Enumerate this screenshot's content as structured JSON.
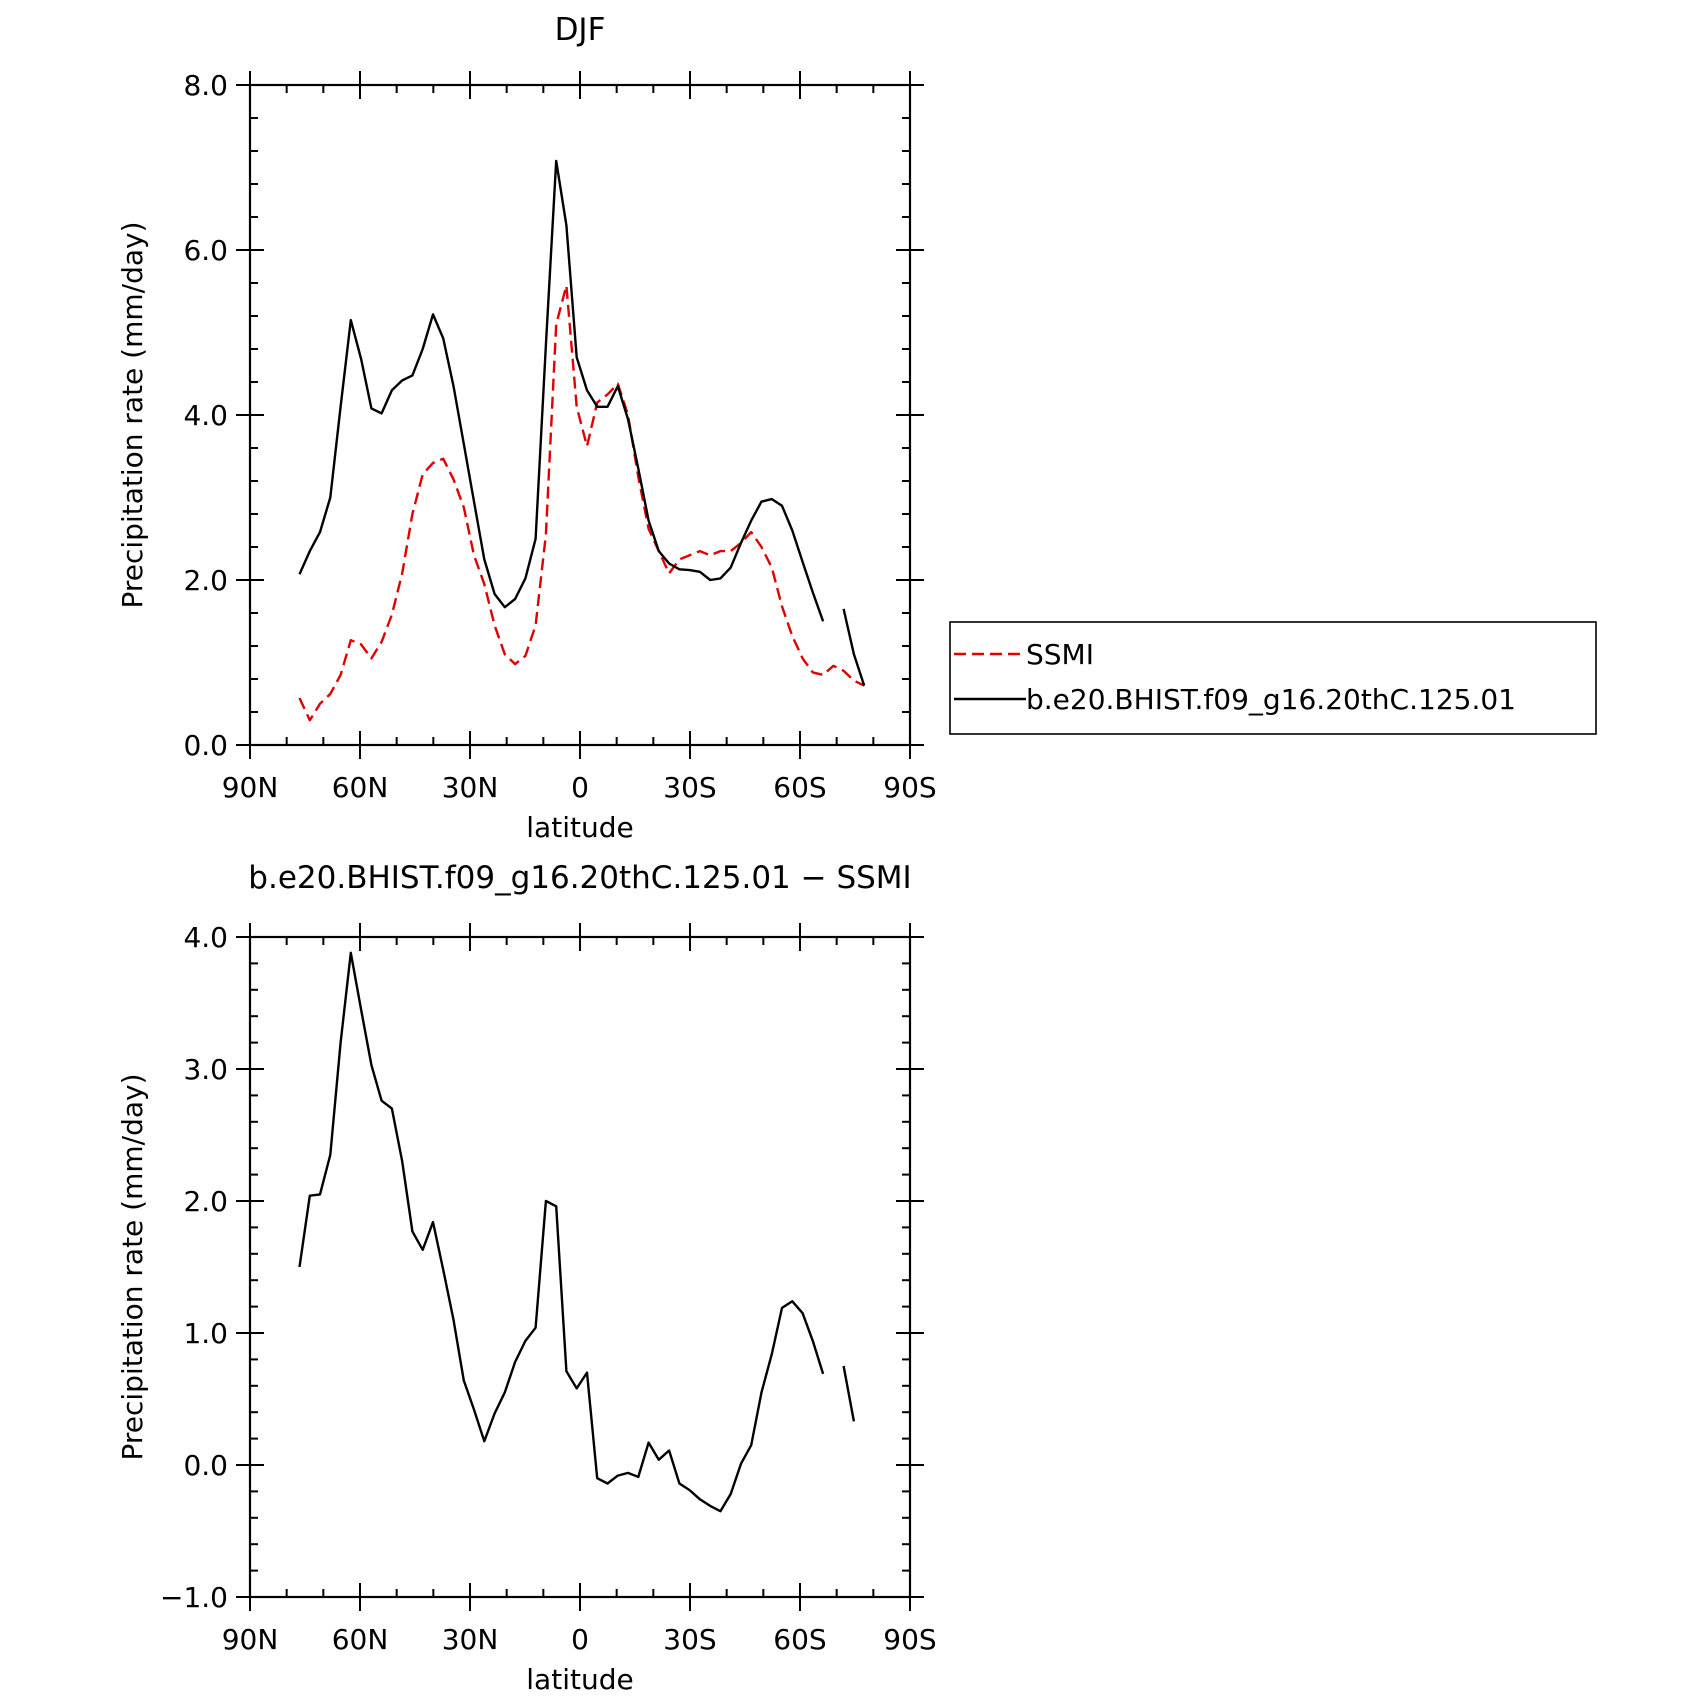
{
  "chart_data": [
    {
      "type": "line",
      "title": "DJF",
      "xlabel": "latitude",
      "ylabel": "Precipitation rate (mm/day)",
      "xlim": [
        90,
        -90
      ],
      "ylim": [
        0,
        8
      ],
      "x_ticks": [
        {
          "value": 90,
          "label": "90N"
        },
        {
          "value": 60,
          "label": "60N"
        },
        {
          "value": 30,
          "label": "30N"
        },
        {
          "value": 0,
          "label": "0"
        },
        {
          "value": -30,
          "label": "30S"
        },
        {
          "value": -60,
          "label": "60S"
        },
        {
          "value": -90,
          "label": "90S"
        }
      ],
      "y_ticks": [
        {
          "value": 0,
          "label": "0.0"
        },
        {
          "value": 2,
          "label": "2.0"
        },
        {
          "value": 4,
          "label": "4.0"
        },
        {
          "value": 6,
          "label": "6.0"
        },
        {
          "value": 8,
          "label": "8.0"
        }
      ],
      "legend": {
        "placement": "right"
      },
      "series": [
        {
          "name": "SSMI",
          "color": "#e00000",
          "dash": true,
          "points": [
            [
              76.5,
              0.57
            ],
            [
              73.7,
              0.3
            ],
            [
              70.9,
              0.5
            ],
            [
              68.1,
              0.62
            ],
            [
              65.3,
              0.85
            ],
            [
              62.5,
              1.27
            ],
            [
              59.7,
              1.22
            ],
            [
              56.9,
              1.05
            ],
            [
              54.1,
              1.25
            ],
            [
              51.3,
              1.58
            ],
            [
              48.5,
              2.08
            ],
            [
              45.7,
              2.8
            ],
            [
              42.9,
              3.28
            ],
            [
              40.1,
              3.42
            ],
            [
              37.3,
              3.47
            ],
            [
              34.5,
              3.22
            ],
            [
              31.7,
              2.88
            ],
            [
              28.9,
              2.3
            ],
            [
              26.1,
              1.95
            ],
            [
              23.3,
              1.45
            ],
            [
              20.5,
              1.1
            ],
            [
              17.7,
              0.98
            ],
            [
              14.9,
              1.08
            ],
            [
              12.1,
              1.45
            ],
            [
              9.3,
              2.55
            ],
            [
              6.5,
              5.1
            ],
            [
              3.7,
              5.57
            ],
            [
              0.9,
              4.1
            ],
            [
              -1.9,
              3.62
            ],
            [
              -4.7,
              4.15
            ],
            [
              -7.5,
              4.25
            ],
            [
              -10.3,
              4.38
            ],
            [
              -13.1,
              4.0
            ],
            [
              -15.9,
              3.25
            ],
            [
              -18.7,
              2.62
            ],
            [
              -21.5,
              2.35
            ],
            [
              -24.3,
              2.08
            ],
            [
              -27.1,
              2.25
            ],
            [
              -29.9,
              2.3
            ],
            [
              -32.7,
              2.35
            ],
            [
              -35.5,
              2.3
            ],
            [
              -38.3,
              2.35
            ],
            [
              -41.1,
              2.35
            ],
            [
              -43.9,
              2.45
            ],
            [
              -46.7,
              2.58
            ],
            [
              -49.5,
              2.4
            ],
            [
              -52.3,
              2.15
            ],
            [
              -55.1,
              1.68
            ],
            [
              -57.9,
              1.32
            ],
            [
              -60.7,
              1.05
            ],
            [
              -63.5,
              0.88
            ],
            [
              -66.3,
              0.85
            ],
            [
              -69.1,
              0.96
            ],
            [
              -71.9,
              0.9
            ],
            [
              -74.7,
              0.78
            ],
            [
              -77.5,
              0.72
            ]
          ]
        },
        {
          "name": "b.e20.BHIST.f09_g16.20thC.125.01",
          "color": "#000000",
          "dash": false,
          "points": [
            [
              76.5,
              2.07
            ],
            [
              73.7,
              2.35
            ],
            [
              70.9,
              2.58
            ],
            [
              68.1,
              3.0
            ],
            [
              65.3,
              4.1
            ],
            [
              62.5,
              5.15
            ],
            [
              59.7,
              4.68
            ],
            [
              56.9,
              4.08
            ],
            [
              54.1,
              4.02
            ],
            [
              51.3,
              4.3
            ],
            [
              48.5,
              4.42
            ],
            [
              45.7,
              4.48
            ],
            [
              42.9,
              4.8
            ],
            [
              40.1,
              5.22
            ],
            [
              37.3,
              4.93
            ],
            [
              34.5,
              4.35
            ],
            [
              31.7,
              3.65
            ],
            [
              28.9,
              2.95
            ],
            [
              26.1,
              2.25
            ],
            [
              23.3,
              1.83
            ],
            [
              20.5,
              1.67
            ],
            [
              17.7,
              1.77
            ],
            [
              14.9,
              2.02
            ],
            [
              12.1,
              2.5
            ],
            [
              9.3,
              4.85
            ],
            [
              6.5,
              7.08
            ],
            [
              3.7,
              6.3
            ],
            [
              0.9,
              4.7
            ],
            [
              -1.9,
              4.3
            ],
            [
              -4.7,
              4.1
            ],
            [
              -7.5,
              4.1
            ],
            [
              -10.3,
              4.35
            ],
            [
              -13.1,
              3.95
            ],
            [
              -15.9,
              3.35
            ],
            [
              -18.7,
              2.72
            ],
            [
              -21.5,
              2.35
            ],
            [
              -24.3,
              2.2
            ],
            [
              -27.1,
              2.13
            ],
            [
              -29.9,
              2.12
            ],
            [
              -32.7,
              2.1
            ],
            [
              -35.5,
              2.0
            ],
            [
              -38.3,
              2.02
            ],
            [
              -41.1,
              2.15
            ],
            [
              -43.9,
              2.45
            ],
            [
              -46.7,
              2.72
            ],
            [
              -49.5,
              2.95
            ],
            [
              -52.3,
              2.98
            ],
            [
              -55.1,
              2.9
            ],
            [
              -57.9,
              2.6
            ],
            [
              -60.7,
              2.22
            ],
            [
              -63.5,
              1.85
            ],
            [
              -66.3,
              1.5
            ],
            null,
            [
              -71.9,
              1.65
            ],
            [
              -74.7,
              1.1
            ],
            [
              -77.5,
              0.72
            ]
          ]
        }
      ]
    },
    {
      "type": "line",
      "title": "b.e20.BHIST.f09_g16.20thC.125.01 − SSMI",
      "xlabel": "latitude",
      "ylabel": "Precipitation rate (mm/day)",
      "xlim": [
        90,
        -90
      ],
      "ylim": [
        -1,
        4
      ],
      "x_ticks": [
        {
          "value": 90,
          "label": "90N"
        },
        {
          "value": 60,
          "label": "60N"
        },
        {
          "value": 30,
          "label": "30N"
        },
        {
          "value": 0,
          "label": "0"
        },
        {
          "value": -30,
          "label": "30S"
        },
        {
          "value": -60,
          "label": "60S"
        },
        {
          "value": -90,
          "label": "90S"
        }
      ],
      "y_ticks": [
        {
          "value": -1,
          "label": "−1.0"
        },
        {
          "value": 0,
          "label": "0.0"
        },
        {
          "value": 1,
          "label": "1.0"
        },
        {
          "value": 2,
          "label": "2.0"
        },
        {
          "value": 3,
          "label": "3.0"
        },
        {
          "value": 4,
          "label": "4.0"
        }
      ],
      "series": [
        {
          "color": "#000000",
          "dash": false,
          "points": [
            [
              76.5,
              1.5
            ],
            [
              73.7,
              2.04
            ],
            [
              70.9,
              2.05
            ],
            [
              68.1,
              2.35
            ],
            [
              65.3,
              3.2
            ],
            [
              62.5,
              3.88
            ],
            [
              59.7,
              3.45
            ],
            [
              56.9,
              3.03
            ],
            [
              54.1,
              2.76
            ],
            [
              51.3,
              2.7
            ],
            [
              48.5,
              2.3
            ],
            [
              45.7,
              1.77
            ],
            [
              42.9,
              1.63
            ],
            [
              40.1,
              1.84
            ],
            [
              37.3,
              1.48
            ],
            [
              34.5,
              1.1
            ],
            [
              31.7,
              0.64
            ],
            [
              28.9,
              0.42
            ],
            [
              26.1,
              0.18
            ],
            [
              23.3,
              0.39
            ],
            [
              20.5,
              0.55
            ],
            [
              17.7,
              0.78
            ],
            [
              14.9,
              0.94
            ],
            [
              12.1,
              1.04
            ],
            [
              9.3,
              2.0
            ],
            [
              6.5,
              1.96
            ],
            [
              3.7,
              0.71
            ],
            [
              0.9,
              0.58
            ],
            [
              -1.9,
              0.7
            ],
            [
              -4.7,
              -0.1
            ],
            [
              -7.5,
              -0.14
            ],
            [
              -10.3,
              -0.08
            ],
            [
              -13.1,
              -0.06
            ],
            [
              -15.9,
              -0.09
            ],
            [
              -18.7,
              0.17
            ],
            [
              -21.5,
              0.04
            ],
            [
              -24.3,
              0.11
            ],
            [
              -27.1,
              -0.14
            ],
            [
              -29.9,
              -0.19
            ],
            [
              -32.7,
              -0.26
            ],
            [
              -35.5,
              -0.31
            ],
            [
              -38.3,
              -0.35
            ],
            [
              -41.1,
              -0.22
            ],
            [
              -43.9,
              0.01
            ],
            [
              -46.7,
              0.15
            ],
            [
              -49.5,
              0.55
            ],
            [
              -52.3,
              0.84
            ],
            [
              -55.1,
              1.19
            ],
            [
              -57.9,
              1.24
            ],
            [
              -60.7,
              1.15
            ],
            [
              -63.5,
              0.94
            ],
            [
              -66.3,
              0.69
            ],
            null,
            [
              -71.9,
              0.75
            ],
            [
              -74.7,
              0.33
            ]
          ]
        }
      ]
    }
  ]
}
